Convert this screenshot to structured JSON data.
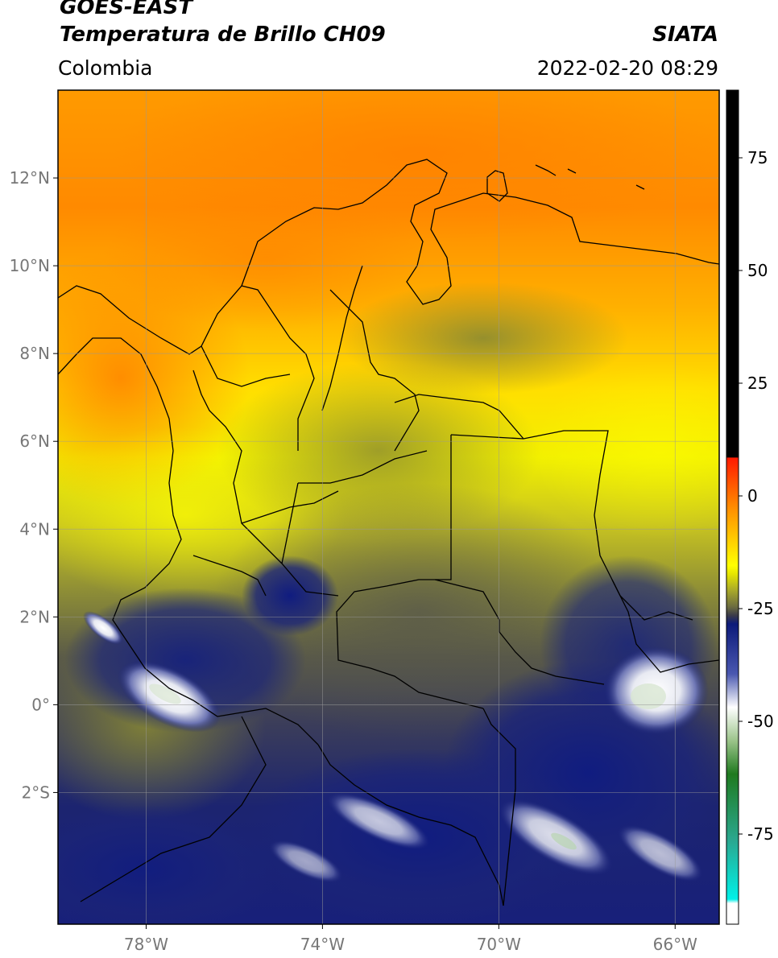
{
  "header": {
    "satellite": "GOES-EAST",
    "product": "Temperatura de Brillo CH09",
    "region": "Colombia",
    "agency": "SIATA",
    "datetime": "2022-02-20 08:29"
  },
  "map": {
    "lon_range": [
      -80,
      -65
    ],
    "lat_range": [
      -5,
      14
    ],
    "lat_ticks": [
      {
        "value": 12,
        "label": "12°N"
      },
      {
        "value": 10,
        "label": "10°N"
      },
      {
        "value": 8,
        "label": "8°N"
      },
      {
        "value": 6,
        "label": "6°N"
      },
      {
        "value": 4,
        "label": "4°N"
      },
      {
        "value": 2,
        "label": "2°N"
      },
      {
        "value": 0,
        "label": "0°"
      },
      {
        "value": -2,
        "label": "2°S"
      }
    ],
    "lon_ticks": [
      {
        "value": -78,
        "label": "78°W"
      },
      {
        "value": -74,
        "label": "74°W"
      },
      {
        "value": -70,
        "label": "70°W"
      },
      {
        "value": -66,
        "label": "66°W"
      }
    ]
  },
  "colorbar": {
    "range": [
      -95,
      90
    ],
    "ticks": [
      {
        "value": 75,
        "label": "75"
      },
      {
        "value": 50,
        "label": "50"
      },
      {
        "value": 25,
        "label": "25"
      },
      {
        "value": 0,
        "label": "0"
      },
      {
        "value": -25,
        "label": "-25"
      },
      {
        "value": -50,
        "label": "-50"
      },
      {
        "value": -75,
        "label": "-75"
      }
    ],
    "colors": {
      "black": "#000000",
      "red": "#e8210f",
      "orange": "#ff8c00",
      "yellow": "#ffff00",
      "olive": "#a8a82a",
      "dark_gray": "#4d4d50",
      "navy": "#0c1a7a",
      "white": "#ffffff",
      "green": "#1f7a1f",
      "cyan": "#00e0d8"
    }
  }
}
